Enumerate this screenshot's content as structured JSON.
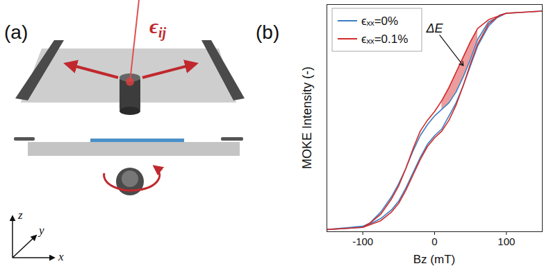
{
  "diagram": {
    "panel_label": "(a)",
    "strain_label": "ϵij",
    "axes": [
      "x",
      "y",
      "z"
    ]
  },
  "chart_data": {
    "type": "line",
    "panel_label": "(b)",
    "x_label": "Bz (mT)",
    "y_label": "MOKE Intensity (-)",
    "xlim": [
      -150,
      150
    ],
    "xticks": [
      -100,
      0,
      100
    ],
    "ylim": [
      -0.01,
      1.03
    ],
    "yticks": [],
    "tick_labels": "x",
    "grid": false,
    "legend": "upper left",
    "series": [
      {
        "name": "ϵₓₓ=0%",
        "color": "#3a7fc1",
        "x": [
          150,
          100,
          75,
          60,
          50,
          40,
          30,
          20,
          10,
          0,
          -10,
          -20,
          -30,
          -40,
          -50,
          -60,
          -75,
          -90,
          -100,
          -150,
          -100,
          -75,
          -60,
          -50,
          -40,
          -30,
          -20,
          -10,
          0,
          10,
          20,
          30,
          40,
          50,
          60,
          75,
          90,
          100,
          150
        ],
        "values": [
          1.0,
          0.99,
          0.95,
          0.87,
          0.78,
          0.7,
          0.63,
          0.58,
          0.55,
          0.52,
          0.48,
          0.43,
          0.36,
          0.28,
          0.21,
          0.15,
          0.08,
          0.03,
          0.015,
          0.0,
          0.01,
          0.05,
          0.09,
          0.13,
          0.19,
          0.26,
          0.33,
          0.39,
          0.43,
          0.46,
          0.52,
          0.58,
          0.66,
          0.75,
          0.84,
          0.93,
          0.98,
          0.99,
          1.0
        ]
      },
      {
        "name": "ϵₓₓ=0.1%",
        "color": "#d42a2a",
        "x": [
          150,
          100,
          75,
          60,
          50,
          40,
          30,
          20,
          10,
          0,
          -10,
          -20,
          -30,
          -40,
          -50,
          -60,
          -75,
          -90,
          -100,
          -150,
          -100,
          -75,
          -60,
          -50,
          -40,
          -30,
          -20,
          -10,
          0,
          10,
          20,
          30,
          40,
          50,
          60,
          75,
          90,
          100,
          150
        ],
        "values": [
          1.0,
          0.99,
          0.96,
          0.92,
          0.86,
          0.79,
          0.72,
          0.65,
          0.59,
          0.54,
          0.5,
          0.45,
          0.37,
          0.28,
          0.2,
          0.14,
          0.07,
          0.03,
          0.01,
          0.0,
          0.01,
          0.04,
          0.08,
          0.12,
          0.18,
          0.25,
          0.32,
          0.38,
          0.42,
          0.45,
          0.5,
          0.57,
          0.66,
          0.76,
          0.85,
          0.94,
          0.98,
          0.99,
          1.0
        ]
      }
    ],
    "shade": {
      "color": "#e05a5a",
      "x": [
        10,
        20,
        30,
        40,
        50,
        60
      ],
      "lower": [
        0.55,
        0.58,
        0.63,
        0.7,
        0.78,
        0.87
      ],
      "upper": [
        0.59,
        0.65,
        0.72,
        0.79,
        0.86,
        0.92
      ]
    },
    "annotations": [
      {
        "text": "ΔE",
        "x": 0,
        "y": 0.92,
        "arrow_to": [
          40,
          0.75
        ]
      }
    ]
  }
}
